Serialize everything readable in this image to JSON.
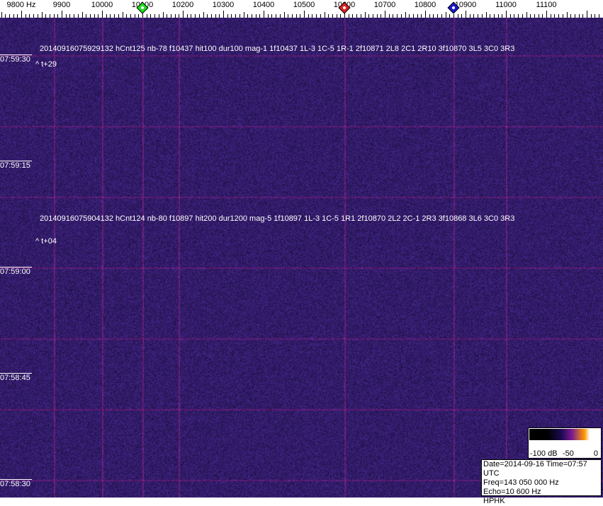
{
  "chart_data": {
    "type": "heatmap",
    "x_unit": "Hz",
    "x_ticks": [
      "9800 Hz",
      "9900",
      "10000",
      "10100",
      "10200",
      "10300",
      "10400",
      "10500",
      "10600",
      "10700",
      "10800",
      "10900",
      "11000",
      "11100"
    ],
    "x_tick_values": [
      9800,
      9900,
      10000,
      10100,
      10200,
      10300,
      10400,
      10500,
      10600,
      10700,
      10800,
      10900,
      11000,
      11100
    ],
    "y_ticks": [
      "07:59:30",
      "07:59:15",
      "07:59:00",
      "07:58:45",
      "07:58:30"
    ],
    "markers": [
      {
        "freq": 10100,
        "color": "#22dd22"
      },
      {
        "freq": 10600,
        "color": "#dd2222"
      },
      {
        "freq": 10870,
        "color": "#1a1acc"
      }
    ],
    "colorbar": {
      "labels": [
        "-100 dB",
        "-50",
        "0"
      ],
      "range_db": [
        -100,
        0
      ]
    },
    "annotations": [
      {
        "text": "20140916075929132 hCnt125 nb-78 f10437 hit100 dur100 mag-1 1f10437 1L-3 1C-5 1R-1 2f10871 2L8 2C1 2R10 3f10870 3L5 3C0 3R3",
        "offset": "^ t+29"
      },
      {
        "text": "20140916075904132 hCnt124 nb-80 f10897 hit200 dur1200 mag-5 1f10897 1L-3 1C-5 1R1 2f10870 2L2 2C-1 2R3 3f10868 3L6 3C0 3R3",
        "offset": "^ t+04"
      }
    ]
  },
  "info": {
    "line1": "Date=2014-09-16 Time=07:57 UTC",
    "line2": "Freq=143 050 000 Hz",
    "line3": "Echo=10 600 Hz",
    "line4": "HPHK"
  },
  "colors": {
    "background": "#2a1a6a",
    "carrier": "#7a2a80"
  }
}
